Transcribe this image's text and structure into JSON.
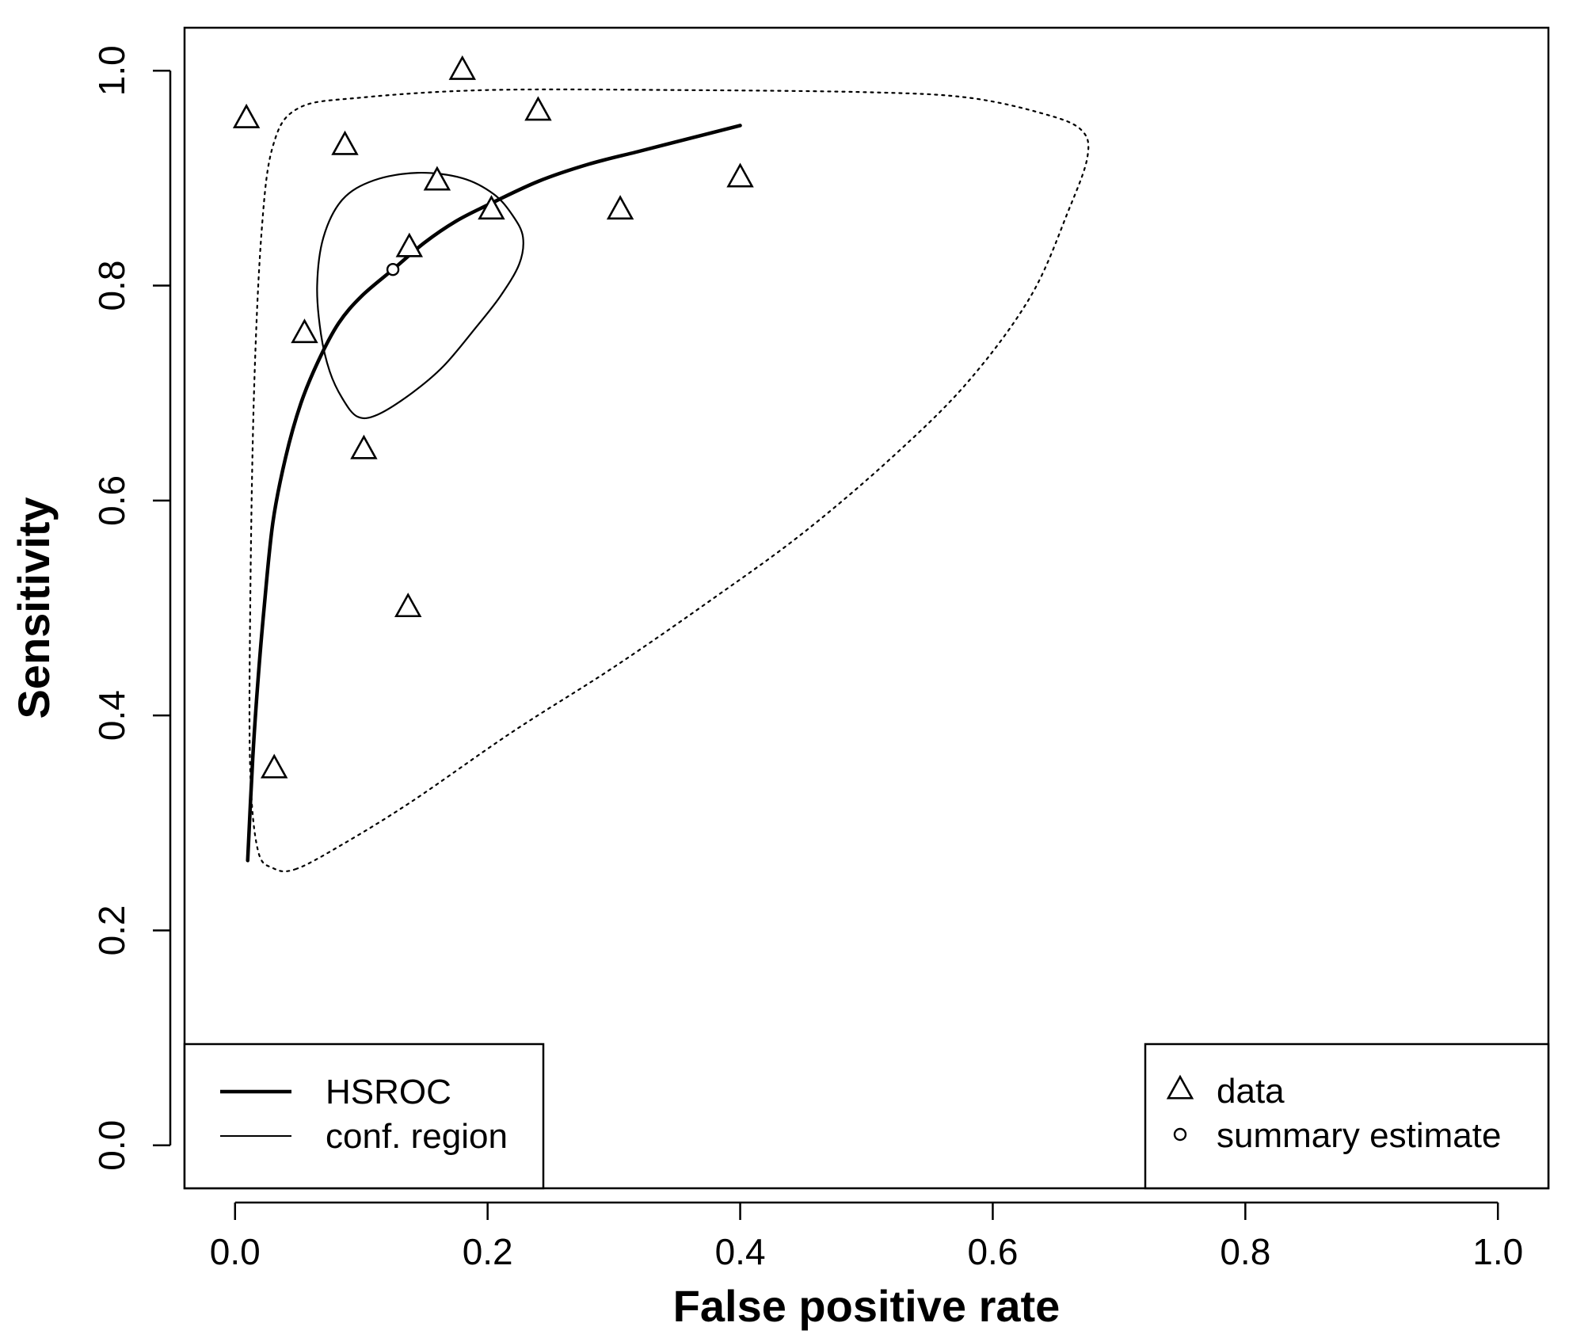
{
  "chart_data": {
    "type": "scatter",
    "xlabel": "False positive rate",
    "ylabel": "Sensitivity",
    "xlim": [
      -0.04,
      1.04
    ],
    "ylim": [
      -0.04,
      1.04
    ],
    "x_ticks": [
      0.0,
      0.2,
      0.4,
      0.6,
      0.8,
      1.0
    ],
    "x_tick_labels": [
      "0.0",
      "0.2",
      "0.4",
      "0.6",
      "0.8",
      "1.0"
    ],
    "y_ticks": [
      0.0,
      0.2,
      0.4,
      0.6,
      0.8,
      1.0
    ],
    "y_tick_labels": [
      "0.0",
      "0.2",
      "0.4",
      "0.6",
      "0.8",
      "1.0"
    ],
    "grid": false,
    "data_points": [
      {
        "x": 0.009,
        "y": 0.955
      },
      {
        "x": 0.18,
        "y": 1.0
      },
      {
        "x": 0.24,
        "y": 0.962
      },
      {
        "x": 0.087,
        "y": 0.93
      },
      {
        "x": 0.16,
        "y": 0.897
      },
      {
        "x": 0.203,
        "y": 0.87
      },
      {
        "x": 0.305,
        "y": 0.87
      },
      {
        "x": 0.4,
        "y": 0.9
      },
      {
        "x": 0.138,
        "y": 0.835
      },
      {
        "x": 0.055,
        "y": 0.755
      },
      {
        "x": 0.102,
        "y": 0.647
      },
      {
        "x": 0.137,
        "y": 0.5
      },
      {
        "x": 0.031,
        "y": 0.35
      }
    ],
    "summary_estimate": {
      "x": 0.125,
      "y": 0.815
    },
    "hsroc_curve": [
      [
        0.01,
        0.265
      ],
      [
        0.014,
        0.36
      ],
      [
        0.018,
        0.43
      ],
      [
        0.023,
        0.5
      ],
      [
        0.03,
        0.58
      ],
      [
        0.04,
        0.64
      ],
      [
        0.052,
        0.69
      ],
      [
        0.066,
        0.73
      ],
      [
        0.082,
        0.765
      ],
      [
        0.1,
        0.79
      ],
      [
        0.125,
        0.815
      ],
      [
        0.15,
        0.84
      ],
      [
        0.175,
        0.86
      ],
      [
        0.2,
        0.875
      ],
      [
        0.24,
        0.897
      ],
      [
        0.28,
        0.913
      ],
      [
        0.32,
        0.925
      ],
      [
        0.36,
        0.937
      ],
      [
        0.4,
        0.949
      ]
    ],
    "confidence_region": [
      [
        0.068,
        0.755
      ],
      [
        0.065,
        0.8
      ],
      [
        0.07,
        0.845
      ],
      [
        0.085,
        0.88
      ],
      [
        0.11,
        0.898
      ],
      [
        0.145,
        0.905
      ],
      [
        0.18,
        0.9
      ],
      [
        0.205,
        0.885
      ],
      [
        0.22,
        0.865
      ],
      [
        0.228,
        0.845
      ],
      [
        0.225,
        0.82
      ],
      [
        0.21,
        0.79
      ],
      [
        0.19,
        0.76
      ],
      [
        0.165,
        0.725
      ],
      [
        0.14,
        0.7
      ],
      [
        0.113,
        0.68
      ],
      [
        0.097,
        0.678
      ],
      [
        0.085,
        0.695
      ],
      [
        0.075,
        0.72
      ],
      [
        0.068,
        0.755
      ]
    ],
    "prediction_region": [
      [
        0.048,
        0.257
      ],
      [
        0.085,
        0.28
      ],
      [
        0.14,
        0.32
      ],
      [
        0.22,
        0.385
      ],
      [
        0.3,
        0.445
      ],
      [
        0.38,
        0.51
      ],
      [
        0.45,
        0.57
      ],
      [
        0.52,
        0.64
      ],
      [
        0.58,
        0.71
      ],
      [
        0.63,
        0.79
      ],
      [
        0.66,
        0.87
      ],
      [
        0.675,
        0.92
      ],
      [
        0.67,
        0.945
      ],
      [
        0.64,
        0.96
      ],
      [
        0.58,
        0.975
      ],
      [
        0.5,
        0.98
      ],
      [
        0.35,
        0.982
      ],
      [
        0.2,
        0.982
      ],
      [
        0.1,
        0.975
      ],
      [
        0.05,
        0.965
      ],
      [
        0.03,
        0.93
      ],
      [
        0.021,
        0.85
      ],
      [
        0.015,
        0.7
      ],
      [
        0.012,
        0.5
      ],
      [
        0.012,
        0.35
      ],
      [
        0.018,
        0.275
      ],
      [
        0.03,
        0.258
      ],
      [
        0.048,
        0.257
      ]
    ],
    "legend": {
      "left": {
        "placement": "bottom-left",
        "entries": [
          {
            "label": "HSROC",
            "style": "thick-line"
          },
          {
            "label": "conf. region",
            "style": "thin-line"
          }
        ]
      },
      "right": {
        "placement": "bottom-right",
        "entries": [
          {
            "label": "data",
            "style": "triangle"
          },
          {
            "label": "summary estimate",
            "style": "circle"
          }
        ]
      }
    }
  }
}
